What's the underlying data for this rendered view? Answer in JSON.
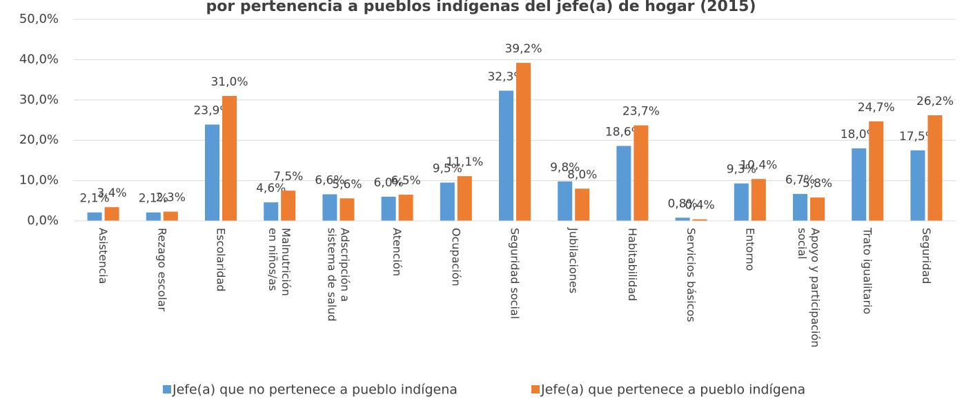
{
  "chart_data": {
    "type": "bar",
    "title": "por pertenencia a pueblos indígenas del jefe(a) de hogar (2015)",
    "categories": [
      [
        "Asistencia"
      ],
      [
        "Rezago escolar"
      ],
      [
        "Escolaridad"
      ],
      [
        "Malnutrición",
        "en niños/as"
      ],
      [
        "Adscripción a",
        "sistema de salud"
      ],
      [
        "Atención"
      ],
      [
        "Ocupación"
      ],
      [
        "Seguridad social"
      ],
      [
        "Jubilaciones"
      ],
      [
        "Habitabilidad"
      ],
      [
        "Servicios básicos"
      ],
      [
        "Entorno"
      ],
      [
        "Apoyo y participación",
        "social"
      ],
      [
        "Trato igualitario"
      ],
      [
        "Seguridad"
      ]
    ],
    "series": [
      {
        "name": "Jefe(a) que no pertenece a pueblo indígena",
        "color": "#5b9bd5",
        "values": [
          2.1,
          2.1,
          23.9,
          4.6,
          6.6,
          6.0,
          9.5,
          32.3,
          9.8,
          18.6,
          0.8,
          9.3,
          6.7,
          18.0,
          17.5
        ],
        "value_labels": [
          "2,1%",
          "2,1%",
          "23,9%",
          "4,6%",
          "6,6%",
          "6,0%",
          "9,5%",
          "32,3%",
          "9,8%",
          "18,6%",
          "0,8%",
          "9,3%",
          "6,7%",
          "18,0%",
          "17,5%"
        ]
      },
      {
        "name": "Jefe(a) que pertenece a pueblo indígena",
        "color": "#ed7d31",
        "values": [
          3.4,
          2.3,
          31.0,
          7.5,
          5.6,
          6.5,
          11.1,
          39.2,
          8.0,
          23.7,
          0.4,
          10.4,
          5.8,
          24.7,
          26.2
        ],
        "value_labels": [
          "3,4%",
          "2,3%",
          "31,0%",
          "7,5%",
          "5,6%",
          "6,5%",
          "11,1%",
          "39,2%",
          "8,0%",
          "23,7%",
          "0,4%",
          "10,4%",
          "5,8%",
          "24,7%",
          "26,2%"
        ]
      }
    ],
    "ylim": [
      0,
      50
    ],
    "yticks": [
      {
        "value": 0,
        "label": "0,0%"
      },
      {
        "value": 10,
        "label": "10,0%"
      },
      {
        "value": 20,
        "label": "20,0%"
      },
      {
        "value": 30,
        "label": "30,0%"
      },
      {
        "value": 40,
        "label": "40,0%"
      },
      {
        "value": 50,
        "label": "50,0%"
      }
    ],
    "grid": true,
    "legend": "bottom"
  }
}
